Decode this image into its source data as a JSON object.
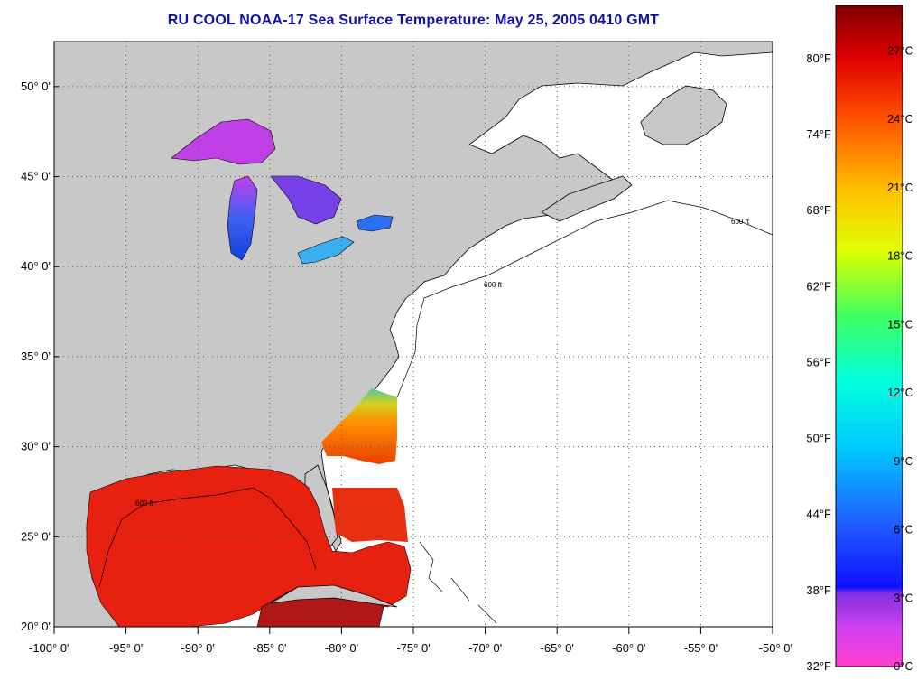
{
  "title": "RU COOL  NOAA-17  Sea Surface Temperature:  May 25, 2005 0410 GMT",
  "map": {
    "lon_range": [
      -100,
      -50
    ],
    "lat_range": [
      20,
      52.5
    ],
    "land_color": "#c8c8c8",
    "cloud_color": "#ffffff",
    "grid": "dotted",
    "lat_ticks": [
      {
        "value": 50,
        "label": "50° 0'"
      },
      {
        "value": 45,
        "label": "45° 0'"
      },
      {
        "value": 40,
        "label": "40° 0'"
      },
      {
        "value": 35,
        "label": "35° 0'"
      },
      {
        "value": 30,
        "label": "30° 0'"
      },
      {
        "value": 25,
        "label": "25° 0'"
      },
      {
        "value": 20,
        "label": "20° 0'"
      }
    ],
    "lon_ticks": [
      {
        "value": -100,
        "label": "-100° 0'"
      },
      {
        "value": -95,
        "label": "-95° 0'"
      },
      {
        "value": -90,
        "label": "-90° 0'"
      },
      {
        "value": -85,
        "label": "-85° 0'"
      },
      {
        "value": -80,
        "label": "-80° 0'"
      },
      {
        "value": -75,
        "label": "-75° 0'"
      },
      {
        "value": -70,
        "label": "-70° 0'"
      },
      {
        "value": -65,
        "label": "-65° 0'"
      },
      {
        "value": -60,
        "label": "-60° 0'"
      },
      {
        "value": -55,
        "label": "-55° 0'"
      },
      {
        "value": -50,
        "label": "-50° 0'"
      }
    ],
    "contour_label": "600 ft"
  },
  "colorbar": {
    "range_c": [
      0,
      29
    ],
    "fahrenheit_labels": [
      "80°F",
      "74°F",
      "68°F",
      "62°F",
      "56°F",
      "50°F",
      "44°F",
      "38°F",
      "32°F"
    ],
    "celsius_labels": [
      "27°C",
      "24°C",
      "21°C",
      "18°C",
      "15°C",
      "12°C",
      "9°C",
      "6°C",
      "3°C",
      "0°C"
    ],
    "fahrenheit_values": [
      80,
      74,
      68,
      62,
      56,
      50,
      44,
      38,
      32
    ],
    "celsius_values": [
      27,
      24,
      21,
      18,
      15,
      12,
      9,
      6,
      3,
      0
    ]
  }
}
